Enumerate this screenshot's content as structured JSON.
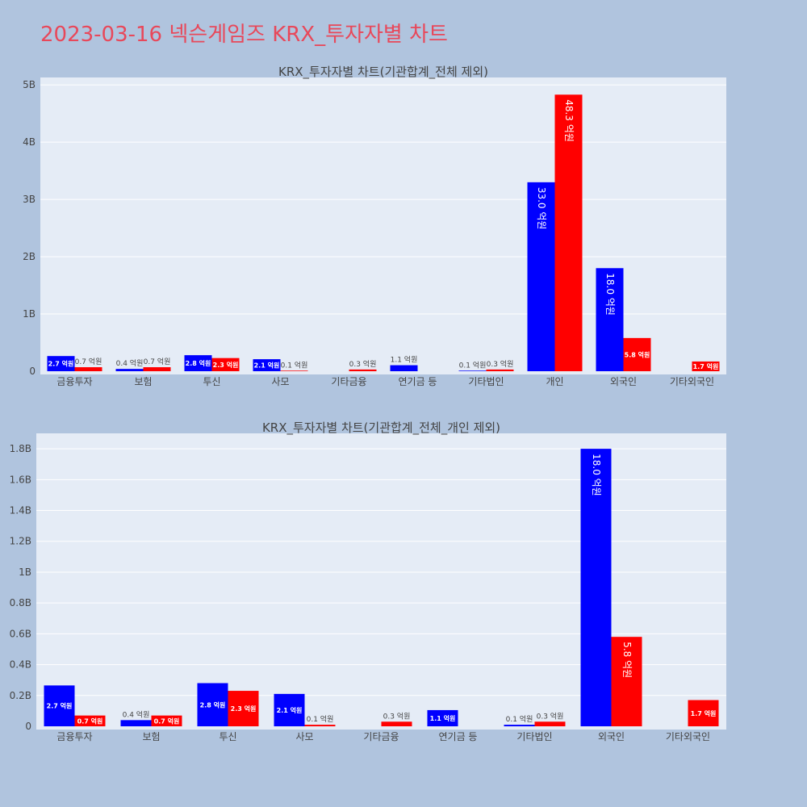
{
  "page": {
    "title": "2023-03-16 넥슨게임즈 KRX_투자자별 차트"
  },
  "colors": {
    "buy": "#0000ff",
    "sell": "#ff0000",
    "plot_bg": "#e5ecf6",
    "page_bg": "#b0c4de",
    "grid": "#ffffff",
    "text": "#444444",
    "title_accent": "#e8485a"
  },
  "chart_data": [
    {
      "type": "bar",
      "title": "KRX_투자자별 차트(기관합계_전체 제외)",
      "categories": [
        "금융투자",
        "보험",
        "투신",
        "사모",
        "기타금융",
        "연기금 등",
        "기타법인",
        "개인",
        "외국인",
        "기타외국인"
      ],
      "series": [
        {
          "color": "#0000ff",
          "values": [
            265000000,
            40000000,
            280000000,
            210000000,
            0,
            105000000,
            10000000,
            3300000000,
            1800000000,
            0
          ],
          "labels": [
            "2.7 억원",
            "0.4 억원",
            "2.8 억원",
            "2.1 억원",
            "",
            "1.1 억원",
            "0.1 억원",
            "33.0 억원",
            "18.0 억원",
            ""
          ]
        },
        {
          "color": "#ff0000",
          "values": [
            70000000,
            70000000,
            230000000,
            10000000,
            30000000,
            0,
            30000000,
            4830000000,
            580000000,
            170000000
          ],
          "labels": [
            "0.7 억원",
            "0.7 억원",
            "2.3 억원",
            "0.1 억원",
            "0.3 억원",
            "",
            "0.3 억원",
            "48.3 억원",
            "5.8 억원",
            "1.7 억원"
          ]
        }
      ],
      "yticks": [
        0,
        1000000000,
        2000000000,
        3000000000,
        4000000000,
        5000000000
      ],
      "ytick_labels": [
        "0",
        "1B",
        "2B",
        "3B",
        "4B",
        "5B"
      ],
      "ylim": [
        0,
        5130000000
      ],
      "grid": true
    },
    {
      "type": "bar",
      "title": "KRX_투자자별 차트(기관합계_전체_개인 제외)",
      "categories": [
        "금융투자",
        "보험",
        "투신",
        "사모",
        "기타금융",
        "연기금 등",
        "기타법인",
        "외국인",
        "기타외국인"
      ],
      "series": [
        {
          "color": "#0000ff",
          "values": [
            265000000,
            40000000,
            280000000,
            210000000,
            0,
            105000000,
            10000000,
            1800000000,
            0
          ],
          "labels": [
            "2.7 억원",
            "0.4 억원",
            "2.8 억원",
            "2.1 억원",
            "",
            "1.1 억원",
            "0.1 억원",
            "18.0 억원",
            ""
          ]
        },
        {
          "color": "#ff0000",
          "values": [
            70000000,
            70000000,
            230000000,
            10000000,
            30000000,
            0,
            30000000,
            580000000,
            170000000
          ],
          "labels": [
            "0.7 억원",
            "0.7 억원",
            "2.3 억원",
            "0.1 억원",
            "0.3 억원",
            "",
            "0.3 억원",
            "5.8 억원",
            "1.7 억원"
          ]
        }
      ],
      "yticks": [
        0,
        200000000,
        400000000,
        600000000,
        800000000,
        1000000000,
        1200000000,
        1400000000,
        1600000000,
        1800000000
      ],
      "ytick_labels": [
        "0",
        "0.2B",
        "0.4B",
        "0.6B",
        "0.8B",
        "1B",
        "1.2B",
        "1.4B",
        "1.6B",
        "1.8B"
      ],
      "ylim": [
        0,
        1900000000
      ],
      "grid": true
    }
  ]
}
